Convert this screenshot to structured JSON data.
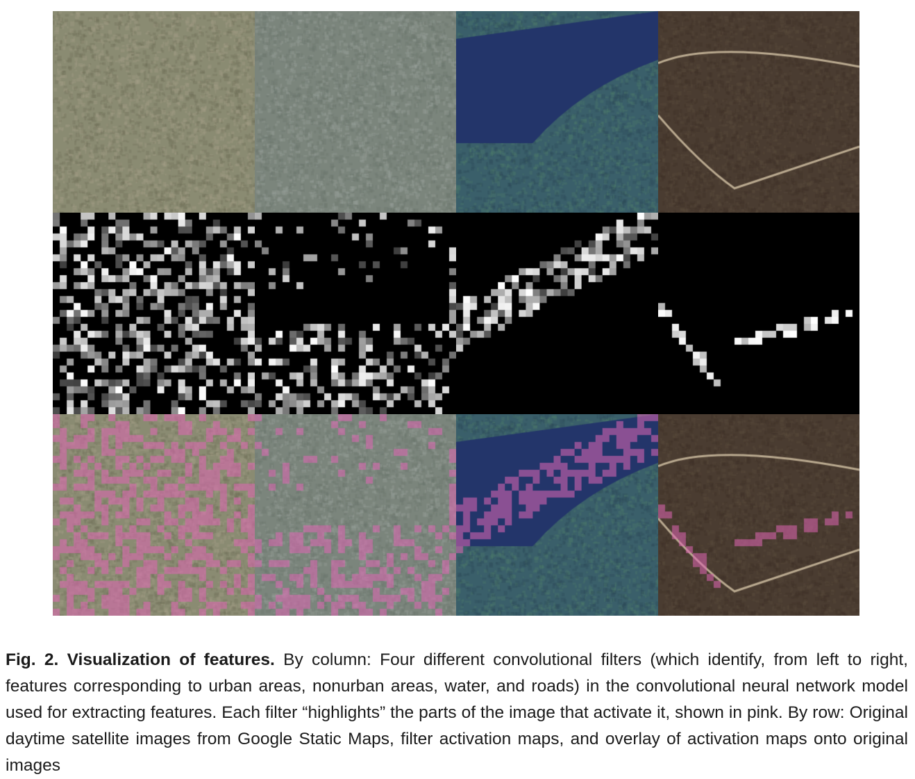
{
  "figure": {
    "columns": [
      {
        "id": "urban",
        "feature": "urban areas"
      },
      {
        "id": "nonurban",
        "feature": "nonurban areas"
      },
      {
        "id": "water",
        "feature": "water"
      },
      {
        "id": "roads",
        "feature": "roads"
      }
    ],
    "rows": [
      {
        "id": "original",
        "content": "Original daytime satellite images from Google Static Maps"
      },
      {
        "id": "activation",
        "content": "filter activation maps"
      },
      {
        "id": "overlay",
        "content": "overlay of activation maps onto original images"
      }
    ],
    "overlay_color": "#e066b4",
    "activation_color": "#000000"
  },
  "caption": {
    "label": "Fig. 2. Visualization of features.",
    "text": " By column: Four different convolutional filters (which identify, from left to right, features corresponding to urban areas, nonurban areas, water, and roads) in the convolutional neural network model used for extracting features. Each filter “highlights” the parts of the image that activate it, shown in pink. By row: Original daytime satellite images from Google Static Maps, filter activation maps, and overlay of activation maps onto original images"
  }
}
